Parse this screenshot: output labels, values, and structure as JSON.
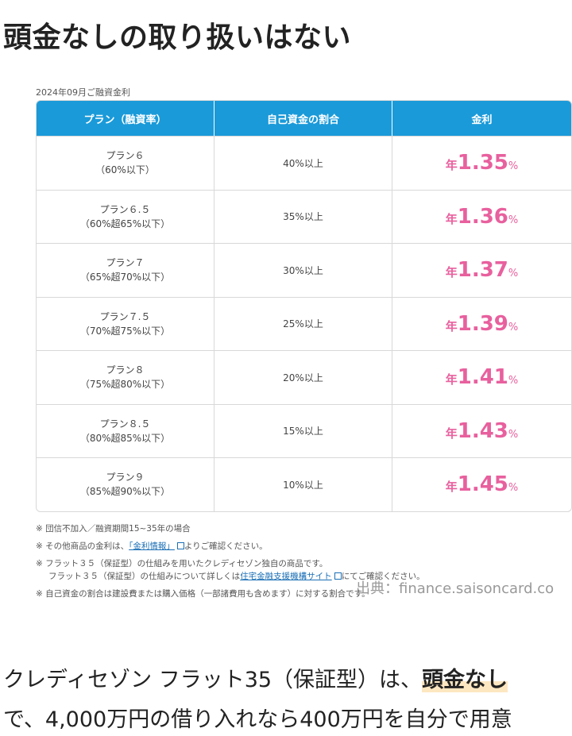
{
  "heading": "頭金なしの取り扱いはない",
  "table": {
    "caption": "2024年09月ご融資金利",
    "headers": [
      "プラン（融資率）",
      "自己資金の割合",
      "金利"
    ],
    "rate_prefix": "年",
    "rate_suffix": "%",
    "rows": [
      {
        "plan": "プラン６",
        "range": "（60%以下）",
        "ratio": "40%以上",
        "rate": "1.35"
      },
      {
        "plan": "プラン６.５",
        "range": "（60%超65%以下）",
        "ratio": "35%以上",
        "rate": "1.36"
      },
      {
        "plan": "プラン７",
        "range": "（65%超70%以下）",
        "ratio": "30%以上",
        "rate": "1.37"
      },
      {
        "plan": "プラン７.５",
        "range": "（70%超75%以下）",
        "ratio": "25%以上",
        "rate": "1.39"
      },
      {
        "plan": "プラン８",
        "range": "（75%超80%以下）",
        "ratio": "20%以上",
        "rate": "1.41"
      },
      {
        "plan": "プラン８.５",
        "range": "（80%超85%以下）",
        "ratio": "15%以上",
        "rate": "1.43"
      },
      {
        "plan": "プラン９",
        "range": "（85%超90%以下）",
        "ratio": "10%以上",
        "rate": "1.45"
      }
    ]
  },
  "notes": {
    "n1": "※ 団信不加入／融資期間15~35年の場合",
    "n2_pre": "※ その他商品の金利は、",
    "n2_link": "「金利情報」",
    "n2_post": "よりご確認ください。",
    "n3a": "※ フラット３５（保証型）の仕組みを用いたクレディセゾン独自の商品です。",
    "n3b_pre": "フラット３５（保証型）の仕組みについて詳しくは",
    "n3b_link": "住宅金融支援機構サイト",
    "n3b_post": "にてご確認ください。",
    "n4": "※ 自己資金の割合は建設費または購入価格（一部諸費用も含めます）に対する割合です。"
  },
  "source": "出典：finance.saisoncard.co",
  "body": {
    "line1_pre": "クレディセゾン フラット35（保証型）は、",
    "line1_highlight": "頭金なし",
    "line2": "で、4,000万円の借り入れなら400万円を自分で用意"
  }
}
